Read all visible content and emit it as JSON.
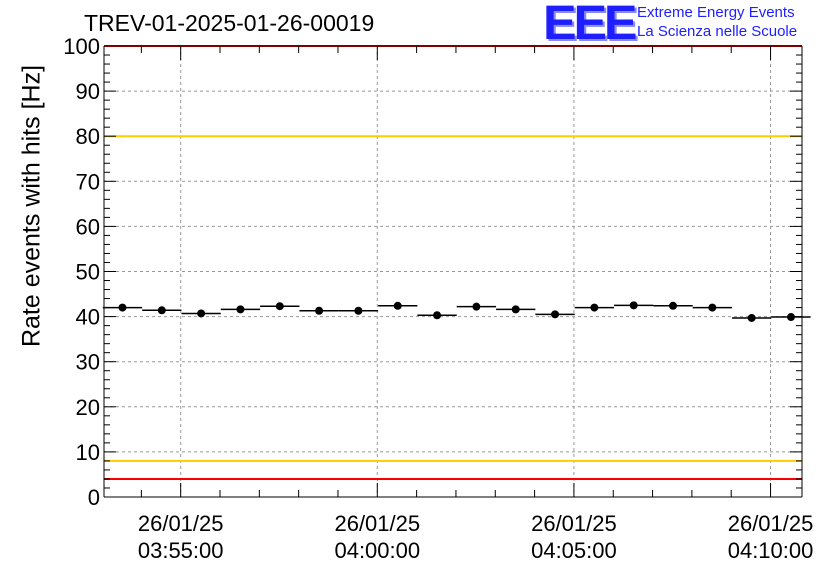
{
  "chart_data": {
    "type": "scatter",
    "title": "TREV-01-2025-01-26-00019",
    "xlabel": "",
    "ylabel": "Rate events with hits [Hz]",
    "ylim": [
      0,
      100
    ],
    "xlim_minutes": [
      -6.95,
      10.8
    ],
    "yticks": [
      "0",
      "10",
      "20",
      "30",
      "40",
      "50",
      "60",
      "70",
      "80",
      "90",
      "100"
    ],
    "xticks": [
      {
        "minute": -5,
        "date": "26/01/25",
        "time": "03:55:00"
      },
      {
        "minute": 0,
        "date": "26/01/25",
        "time": "04:00:00"
      },
      {
        "minute": 5,
        "date": "26/01/25",
        "time": "04:05:00"
      },
      {
        "minute": 10,
        "date": "26/01/25",
        "time": "04:10:00"
      }
    ],
    "bin_width_minutes": 1,
    "series": [
      {
        "name": "rate",
        "x_minutes": [
          -6.48,
          -5.48,
          -4.48,
          -3.48,
          -2.48,
          -1.48,
          -0.48,
          0.52,
          1.52,
          2.52,
          3.52,
          4.52,
          5.52,
          6.52,
          7.52,
          8.52,
          9.52,
          10.52
        ],
        "values": [
          42.0,
          41.4,
          40.7,
          41.6,
          42.3,
          41.3,
          41.3,
          42.4,
          40.3,
          42.2,
          41.6,
          40.5,
          42.0,
          42.5,
          42.4,
          42.0,
          39.7,
          39.9
        ]
      }
    ],
    "reference_lines": [
      {
        "y": 4,
        "color": "#ff0000"
      },
      {
        "y": 8,
        "color": "#ffcc00"
      },
      {
        "y": 80,
        "color": "#ffcc00"
      },
      {
        "y": 100,
        "color": "#ff0000"
      }
    ],
    "grid": true
  },
  "logo": {
    "mark": "EEE",
    "line1": "Extreme Energy Events",
    "line2": "La Scienza nelle Scuole"
  }
}
